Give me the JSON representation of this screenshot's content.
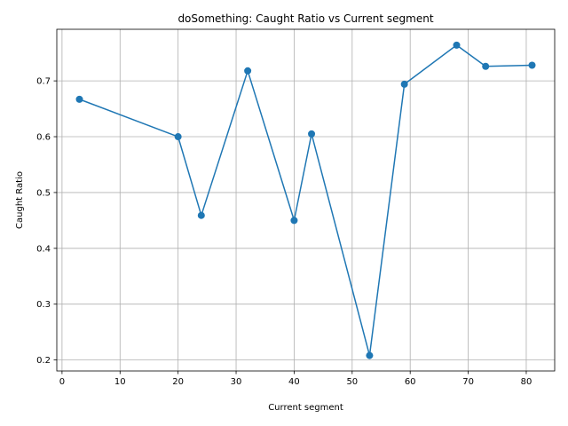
{
  "chart_data": {
    "type": "line",
    "title": "doSomething: Caught Ratio vs Current segment",
    "xlabel": "Current segment",
    "ylabel": "Caught Ratio",
    "xlim": [
      -0.9,
      84.9
    ],
    "ylim": [
      0.1803,
      0.7924
    ],
    "xticks": [
      0,
      10,
      20,
      30,
      40,
      50,
      60,
      70,
      80
    ],
    "yticks": [
      0.2,
      0.3,
      0.4,
      0.5,
      0.6,
      0.7
    ],
    "xtick_labels": [
      "0",
      "10",
      "20",
      "30",
      "40",
      "50",
      "60",
      "70",
      "80"
    ],
    "ytick_labels": [
      "0.2",
      "0.3",
      "0.4",
      "0.5",
      "0.6",
      "0.7"
    ],
    "grid": true,
    "series": [
      {
        "color": "#1f77b4",
        "marker": "circle",
        "x": [
          3,
          20,
          24,
          32,
          40,
          43,
          53,
          59,
          68,
          73,
          81
        ],
        "y": [
          0.667,
          0.6,
          0.459,
          0.718,
          0.45,
          0.605,
          0.208,
          0.694,
          0.764,
          0.726,
          0.728
        ]
      }
    ]
  }
}
